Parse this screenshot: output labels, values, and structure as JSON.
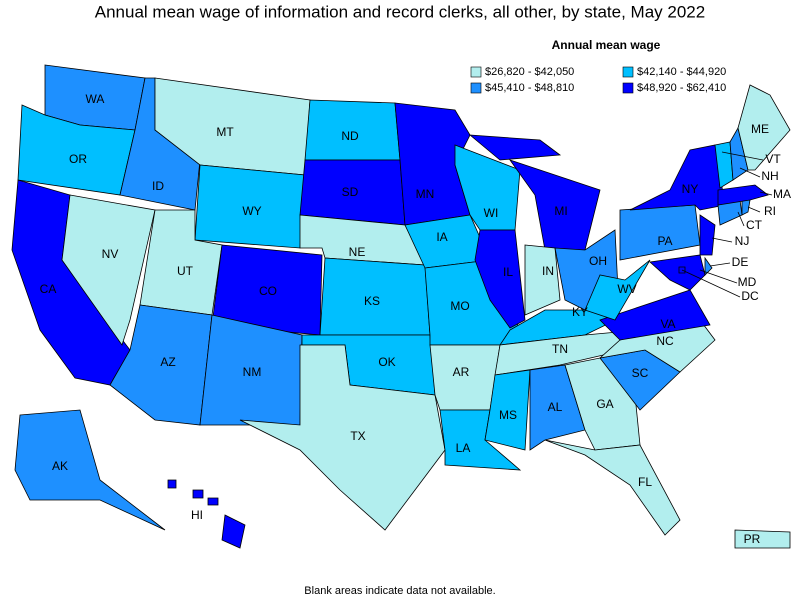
{
  "title": "Annual mean wage of information and record clerks, all other, by state, May 2022",
  "legend": {
    "title": "Annual mean wage",
    "items": [
      {
        "label": "$26,820 - $42,050",
        "color": "#b2eeee"
      },
      {
        "label": "$42,140 - $44,920",
        "color": "#00bfff"
      },
      {
        "label": "$45,410 - $48,810",
        "color": "#1e90ff"
      },
      {
        "label": "$48,920 - $62,410",
        "color": "#0000ff"
      }
    ]
  },
  "states": [
    {
      "label": "WA",
      "color": "#1e90ff"
    },
    {
      "label": "OR",
      "color": "#00bfff"
    },
    {
      "label": "CA",
      "color": "#0000ff"
    },
    {
      "label": "NV",
      "color": "#b2eeee"
    },
    {
      "label": "ID",
      "color": "#1e90ff"
    },
    {
      "label": "MT",
      "color": "#b2eeee"
    },
    {
      "label": "WY",
      "color": "#00bfff"
    },
    {
      "label": "UT",
      "color": "#b2eeee"
    },
    {
      "label": "CO",
      "color": "#0000ff"
    },
    {
      "label": "AZ",
      "color": "#1e90ff"
    },
    {
      "label": "NM",
      "color": "#1e90ff"
    },
    {
      "label": "ND",
      "color": "#00bfff"
    },
    {
      "label": "SD",
      "color": "#0000ff"
    },
    {
      "label": "NE",
      "color": "#b2eeee"
    },
    {
      "label": "KS",
      "color": "#00bfff"
    },
    {
      "label": "OK",
      "color": "#00bfff"
    },
    {
      "label": "TX",
      "color": "#b2eeee"
    },
    {
      "label": "MN",
      "color": "#0000ff"
    },
    {
      "label": "IA",
      "color": "#00bfff"
    },
    {
      "label": "MO",
      "color": "#00bfff"
    },
    {
      "label": "AR",
      "color": "#b2eeee"
    },
    {
      "label": "LA",
      "color": "#00bfff"
    },
    {
      "label": "WI",
      "color": "#00bfff"
    },
    {
      "label": "IL",
      "color": "#0000ff"
    },
    {
      "label": "MI",
      "color": "#0000ff"
    },
    {
      "label": "IN",
      "color": "#b2eeee"
    },
    {
      "label": "OH",
      "color": "#1e90ff"
    },
    {
      "label": "KY",
      "color": "#00bfff"
    },
    {
      "label": "TN",
      "color": "#b2eeee"
    },
    {
      "label": "MS",
      "color": "#00bfff"
    },
    {
      "label": "AL",
      "color": "#1e90ff"
    },
    {
      "label": "GA",
      "color": "#b2eeee"
    },
    {
      "label": "FL",
      "color": "#b2eeee"
    },
    {
      "label": "SC",
      "color": "#1e90ff"
    },
    {
      "label": "NC",
      "color": "#b2eeee"
    },
    {
      "label": "VA",
      "color": "#0000ff"
    },
    {
      "label": "WV",
      "color": "#00bfff"
    },
    {
      "label": "PA",
      "color": "#1e90ff"
    },
    {
      "label": "NY",
      "color": "#0000ff"
    },
    {
      "label": "NJ",
      "color": "#0000ff"
    },
    {
      "label": "DE",
      "color": "#1e90ff"
    },
    {
      "label": "MD",
      "color": "#0000ff"
    },
    {
      "label": "DC",
      "color": "#0000ff"
    },
    {
      "label": "CT",
      "color": "#1e90ff"
    },
    {
      "label": "RI",
      "color": "#1e90ff"
    },
    {
      "label": "MA",
      "color": "#0000ff"
    },
    {
      "label": "VT",
      "color": "#00bfff"
    },
    {
      "label": "NH",
      "color": "#1e90ff"
    },
    {
      "label": "ME",
      "color": "#b2eeee"
    },
    {
      "label": "AK",
      "color": "#1e90ff"
    },
    {
      "label": "HI",
      "color": "#0000ff"
    },
    {
      "label": "PR",
      "color": "#b2eeee"
    }
  ],
  "footnote": "Blank areas indicate data not available."
}
